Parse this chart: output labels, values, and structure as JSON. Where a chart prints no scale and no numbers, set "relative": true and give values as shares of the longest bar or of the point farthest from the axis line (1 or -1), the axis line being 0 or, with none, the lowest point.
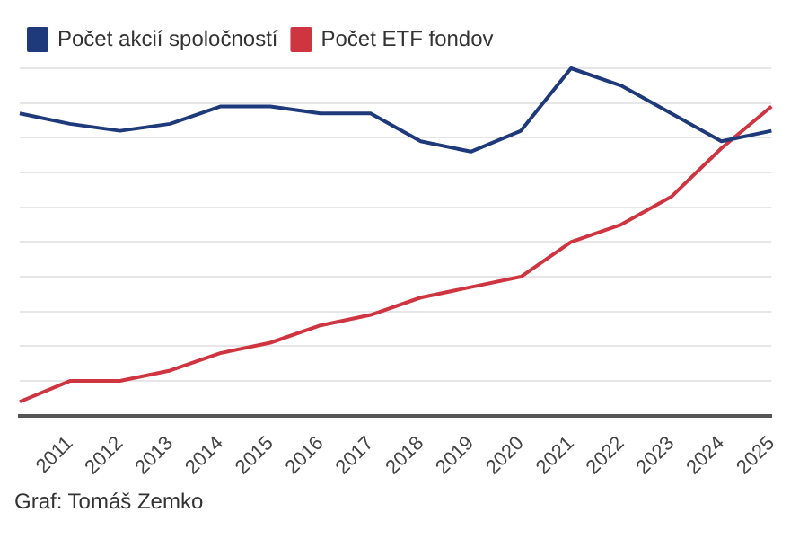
{
  "chart_data": {
    "type": "line",
    "relative": true,
    "categories": [
      null,
      "2011",
      "2012",
      "2013",
      "2014",
      "2015",
      "2016",
      "2017",
      "2018",
      "2019",
      "2020",
      "2021",
      "2022",
      "2023",
      "2024",
      "2025"
    ],
    "series": [
      {
        "name": "Počet akcií spoločností",
        "color": "#1f3a7a",
        "values": [
          0.87,
          0.84,
          0.82,
          0.84,
          0.89,
          0.89,
          0.87,
          0.87,
          0.79,
          0.76,
          0.82,
          1,
          0.95,
          0.87,
          0.79,
          0.82
        ]
      },
      {
        "name": "Počet ETF fondov",
        "color": "#cf3540",
        "values": [
          0.04,
          0.1,
          0.1,
          0.13,
          0.18,
          0.21,
          0.26,
          0.29,
          0.34,
          0.37,
          0.4,
          0.5,
          0.55,
          0.63,
          0.77,
          0.89
        ]
      }
    ],
    "grid": "y",
    "legend": "top left",
    "marker": "none",
    "line_style": "solid",
    "annotations": [
      "Graf: Tomáš Zemko"
    ]
  }
}
